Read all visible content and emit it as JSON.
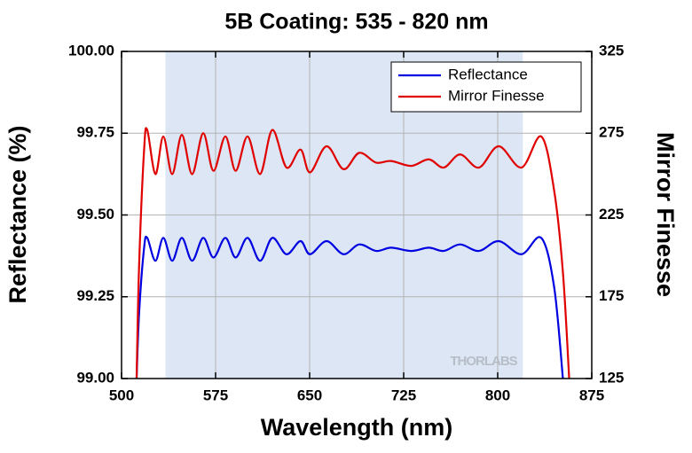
{
  "chart_data": {
    "type": "line",
    "title": "5B Coating: 535 - 820 nm",
    "xlabel": "Wavelength (nm)",
    "ylabel": "Reflectance (%)",
    "y2label": "Mirror Finesse",
    "watermark": "THORLABS",
    "shaded_region": [
      535,
      820
    ],
    "shade_color": "#dce6f5",
    "xlim": [
      500,
      875
    ],
    "xticks": [
      500,
      575,
      650,
      725,
      800,
      875
    ],
    "ylim": [
      99,
      100
    ],
    "yticks": [
      {
        "value": 99,
        "label": "99.00"
      },
      99.25,
      {
        "value": 99.5,
        "label": "99.50"
      },
      99.75,
      {
        "value": 100,
        "label": "100.00"
      }
    ],
    "y2lim": [
      125,
      325
    ],
    "y2ticks": [
      125,
      175,
      225,
      275,
      325
    ],
    "grid": true,
    "legend": "upper right",
    "x": [
      512,
      514,
      518,
      520.5,
      527,
      533.3,
      540.4,
      548.1,
      556.3,
      565.1,
      573.3,
      582.8,
      591,
      600.5,
      610.5,
      620.3,
      631.6,
      642.7,
      650.3,
      663.5,
      677,
      689.6,
      703,
      715,
      731,
      745,
      757,
      770,
      785,
      800.8,
      819,
      834.7,
      845,
      852,
      857
    ],
    "series": [
      {
        "name": "Reflectance",
        "color": "#0000e0",
        "values": [
          99.0,
          99.2,
          99.4,
          99.43,
          99.36,
          99.43,
          99.36,
          99.43,
          99.36,
          99.43,
          99.37,
          99.43,
          99.37,
          99.43,
          99.36,
          99.43,
          99.38,
          99.42,
          99.38,
          99.42,
          99.38,
          99.41,
          99.39,
          99.4,
          99.39,
          99.4,
          99.39,
          99.41,
          99.39,
          99.42,
          99.38,
          99.43,
          99.28,
          99.0,
          null
        ]
      },
      {
        "name": "Mirror Finesse",
        "color": "#e00000",
        "axis": "y2",
        "values": [
          125,
          194,
          265,
          277,
          250,
          273,
          250,
          274,
          250,
          275,
          252,
          273,
          252,
          273,
          250,
          277,
          254,
          265,
          251,
          267,
          253,
          263,
          257,
          258,
          255,
          259,
          254,
          262,
          254,
          267,
          254,
          273,
          240,
          190,
          125
        ]
      }
    ]
  }
}
